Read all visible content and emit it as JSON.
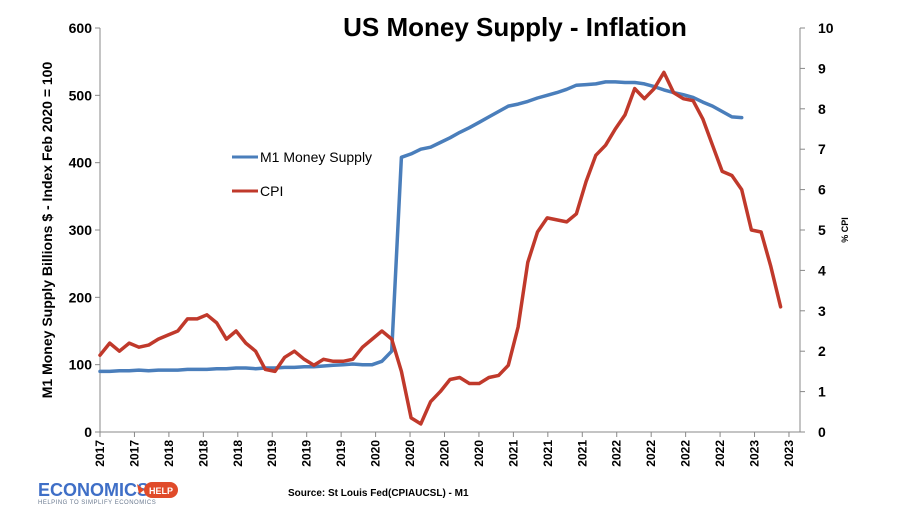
{
  "chart_data": {
    "type": "line",
    "title": "US Money Supply - Inflation",
    "ylabel": "M1 Money Supply Billions $ - Index Feb 2020 = 100",
    "y2label": "% CPI",
    "ylim": [
      0,
      600
    ],
    "y2lim": [
      0,
      10
    ],
    "yticks": [
      "0",
      "100",
      "200",
      "300",
      "400",
      "500",
      "600"
    ],
    "y2ticks": [
      "0",
      "1",
      "2",
      "3",
      "4",
      "5",
      "6",
      "7",
      "8",
      "9",
      "10"
    ],
    "xtick_labels": [
      "2017",
      "2017",
      "2018",
      "2018",
      "2018",
      "2019",
      "2019",
      "2019",
      "2020",
      "2020",
      "2020",
      "2020",
      "2021",
      "2021",
      "2021",
      "2022",
      "2022",
      "2022",
      "2022",
      "2023",
      "2023"
    ],
    "grid": false,
    "legend_position": "center-left",
    "series": [
      {
        "name": "M1 Money Supply",
        "axis": "left",
        "color": "#4a7ebb",
        "points": [
          [
            0,
            90
          ],
          [
            1,
            90
          ],
          [
            2,
            91
          ],
          [
            3,
            91
          ],
          [
            4,
            92
          ],
          [
            5,
            91
          ],
          [
            6,
            92
          ],
          [
            7,
            92
          ],
          [
            8,
            92
          ],
          [
            9,
            93
          ],
          [
            10,
            93
          ],
          [
            11,
            93
          ],
          [
            12,
            94
          ],
          [
            13,
            94
          ],
          [
            14,
            95
          ],
          [
            15,
            95
          ],
          [
            16,
            94
          ],
          [
            17,
            95
          ],
          [
            18,
            95
          ],
          [
            19,
            96
          ],
          [
            20,
            96
          ],
          [
            21,
            97
          ],
          [
            22,
            97
          ],
          [
            23,
            98
          ],
          [
            24,
            99
          ],
          [
            25,
            100
          ],
          [
            26,
            101
          ],
          [
            27,
            100
          ],
          [
            28,
            100
          ],
          [
            29,
            105
          ],
          [
            30,
            120
          ],
          [
            31,
            408
          ],
          [
            32,
            413
          ],
          [
            33,
            420
          ],
          [
            34,
            423
          ],
          [
            35,
            430
          ],
          [
            36,
            437
          ],
          [
            37,
            445
          ],
          [
            38,
            452
          ],
          [
            39,
            460
          ],
          [
            40,
            468
          ],
          [
            41,
            476
          ],
          [
            42,
            484
          ],
          [
            43,
            487
          ],
          [
            44,
            491
          ],
          [
            45,
            496
          ],
          [
            46,
            500
          ],
          [
            47,
            504
          ],
          [
            48,
            509
          ],
          [
            49,
            515
          ],
          [
            50,
            516
          ],
          [
            51,
            517
          ],
          [
            52,
            520
          ],
          [
            53,
            520
          ],
          [
            54,
            519
          ],
          [
            55,
            519
          ],
          [
            56,
            517
          ],
          [
            57,
            513
          ],
          [
            58,
            508
          ],
          [
            59,
            504
          ],
          [
            60,
            501
          ],
          [
            61,
            497
          ],
          [
            62,
            490
          ],
          [
            63,
            484
          ],
          [
            64,
            476
          ],
          [
            65,
            468
          ],
          [
            66,
            467
          ]
        ]
      },
      {
        "name": "CPI",
        "axis": "right",
        "color": "#c0392b",
        "points": [
          [
            0,
            1.9
          ],
          [
            1,
            2.2
          ],
          [
            2,
            2.0
          ],
          [
            3,
            2.2
          ],
          [
            4,
            2.1
          ],
          [
            5,
            2.15
          ],
          [
            6,
            2.3
          ],
          [
            7,
            2.4
          ],
          [
            8,
            2.5
          ],
          [
            9,
            2.8
          ],
          [
            10,
            2.8
          ],
          [
            11,
            2.9
          ],
          [
            12,
            2.7
          ],
          [
            13,
            2.3
          ],
          [
            14,
            2.5
          ],
          [
            15,
            2.2
          ],
          [
            16,
            2.0
          ],
          [
            17,
            1.55
          ],
          [
            18,
            1.5
          ],
          [
            19,
            1.85
          ],
          [
            20,
            2.0
          ],
          [
            21,
            1.8
          ],
          [
            22,
            1.65
          ],
          [
            23,
            1.8
          ],
          [
            24,
            1.75
          ],
          [
            25,
            1.75
          ],
          [
            26,
            1.8
          ],
          [
            27,
            2.1
          ],
          [
            28,
            2.3
          ],
          [
            29,
            2.5
          ],
          [
            30,
            2.3
          ],
          [
            31,
            1.5
          ],
          [
            32,
            0.35
          ],
          [
            33,
            0.2
          ],
          [
            34,
            0.75
          ],
          [
            35,
            1.0
          ],
          [
            36,
            1.3
          ],
          [
            37,
            1.35
          ],
          [
            38,
            1.2
          ],
          [
            39,
            1.2
          ],
          [
            40,
            1.35
          ],
          [
            41,
            1.4
          ],
          [
            42,
            1.65
          ],
          [
            43,
            2.6
          ],
          [
            44,
            4.2
          ],
          [
            45,
            4.95
          ],
          [
            46,
            5.3
          ],
          [
            47,
            5.25
          ],
          [
            48,
            5.2
          ],
          [
            49,
            5.4
          ],
          [
            50,
            6.2
          ],
          [
            51,
            6.85
          ],
          [
            52,
            7.1
          ],
          [
            53,
            7.5
          ],
          [
            54,
            7.85
          ],
          [
            55,
            8.5
          ],
          [
            56,
            8.25
          ],
          [
            57,
            8.5
          ],
          [
            58,
            8.9
          ],
          [
            59,
            8.4
          ],
          [
            60,
            8.25
          ],
          [
            61,
            8.2
          ],
          [
            62,
            7.75
          ],
          [
            63,
            7.1
          ],
          [
            64,
            6.45
          ],
          [
            65,
            6.35
          ],
          [
            66,
            6.0
          ],
          [
            67,
            5.0
          ],
          [
            68,
            4.95
          ],
          [
            69,
            4.1
          ],
          [
            70,
            3.1
          ]
        ]
      }
    ]
  },
  "source_text": "Source: St Louis Fed(CPIAUCSL) - M1",
  "logo": {
    "main": "ECONOMICS",
    "badge": "HELP",
    "tagline": "HELPING TO SIMPLIFY ECONOMICS"
  }
}
